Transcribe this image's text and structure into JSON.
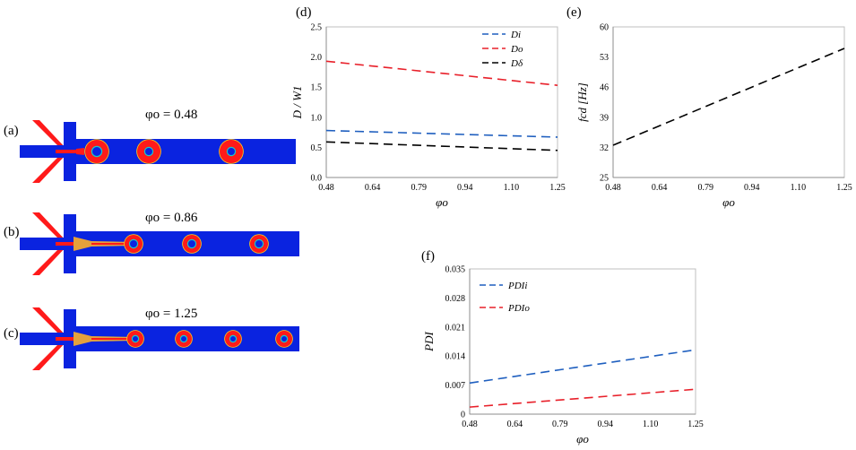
{
  "simulations": [
    {
      "panel": "(a)",
      "phi_label": "φo = 0.48",
      "droplet_count": 3
    },
    {
      "panel": "(b)",
      "phi_label": "φo = 0.86",
      "droplet_count": 3
    },
    {
      "panel": "(c)",
      "phi_label": "φo = 1.25",
      "droplet_count": 4
    }
  ],
  "colors": {
    "channel": "#0a23e0",
    "inner_phase": "#ff1a1a",
    "core": "#0a23e0",
    "series_blue": "#1f5fbf",
    "series_red": "#e8202a",
    "series_black": "#000000"
  },
  "chart_data": [
    {
      "panel": "(d)",
      "type": "line",
      "xlabel": "φo",
      "ylabel": "D / W1",
      "x_ticks": [
        "0.48",
        "0.64",
        "0.79",
        "0.94",
        "1.10",
        "1.25"
      ],
      "y_ticks": [
        "0.0",
        "0.5",
        "1.0",
        "1.5",
        "2.0",
        "2.5"
      ],
      "xlim": [
        0.48,
        1.25
      ],
      "ylim": [
        0,
        2.5
      ],
      "legend_position": "top-right",
      "series": [
        {
          "name": "Di",
          "color": "#1f5fbf",
          "x": [
            0.48,
            1.25
          ],
          "y": [
            0.78,
            0.67
          ]
        },
        {
          "name": "Do",
          "color": "#e8202a",
          "x": [
            0.48,
            1.25
          ],
          "y": [
            1.93,
            1.53
          ]
        },
        {
          "name": "Dδ",
          "color": "#000000",
          "x": [
            0.48,
            1.25
          ],
          "y": [
            0.59,
            0.45
          ]
        }
      ]
    },
    {
      "panel": "(e)",
      "type": "line",
      "xlabel": "φo",
      "ylabel": "fcd [Hz]",
      "x_ticks": [
        "0.48",
        "0.64",
        "0.79",
        "0.94",
        "1.10",
        "1.25"
      ],
      "y_ticks": [
        "25",
        "32",
        "39",
        "46",
        "53",
        "60"
      ],
      "xlim": [
        0.48,
        1.25
      ],
      "ylim": [
        25,
        60
      ],
      "series": [
        {
          "name": "",
          "color": "#000000",
          "x": [
            0.48,
            1.25
          ],
          "y": [
            32.5,
            55.0
          ]
        }
      ]
    },
    {
      "panel": "(f)",
      "type": "line",
      "xlabel": "φo",
      "ylabel": "PDI",
      "x_ticks": [
        "0.48",
        "0.64",
        "0.79",
        "0.94",
        "1.10",
        "1.25"
      ],
      "y_ticks": [
        "0",
        "0.007",
        "0.014",
        "0.021",
        "0.028",
        "0.035"
      ],
      "xlim": [
        0.48,
        1.25
      ],
      "ylim": [
        0,
        0.035
      ],
      "legend_position": "top-left",
      "series": [
        {
          "name": "PDIi",
          "color": "#1f5fbf",
          "x": [
            0.48,
            1.25
          ],
          "y": [
            0.0075,
            0.0155
          ]
        },
        {
          "name": "PDIo",
          "color": "#e8202a",
          "x": [
            0.48,
            1.25
          ],
          "y": [
            0.0017,
            0.006
          ]
        }
      ]
    }
  ]
}
